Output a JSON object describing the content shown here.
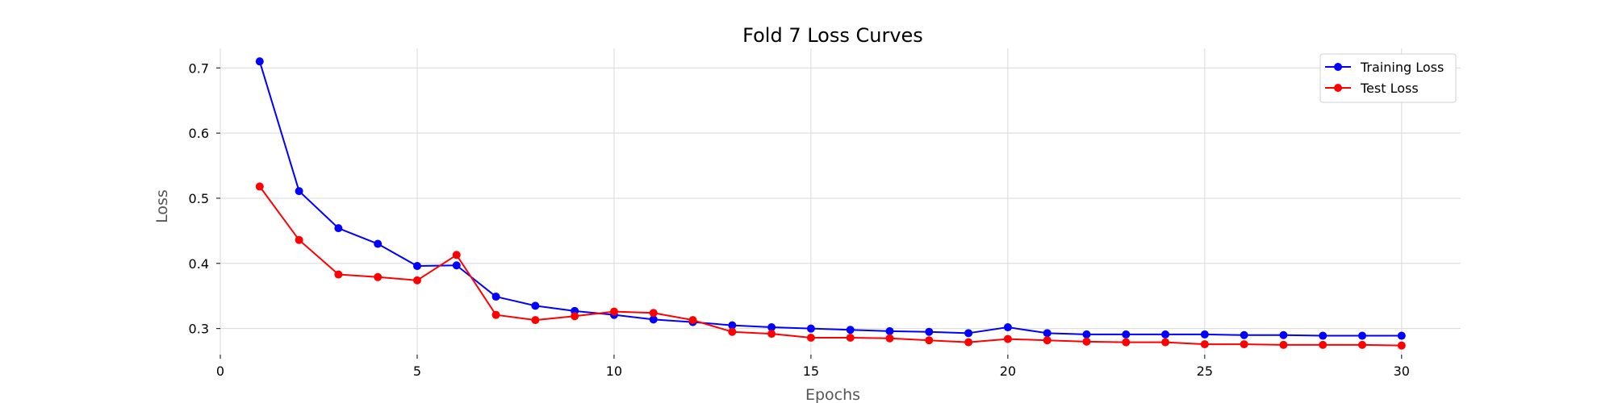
{
  "chart_data": {
    "type": "line",
    "title": "Fold 7 Loss Curves",
    "xlabel": "Epochs",
    "ylabel": "Loss",
    "xlim": [
      0,
      31.5
    ],
    "ylim": [
      0.26,
      0.73
    ],
    "xticks": [
      0,
      5,
      10,
      15,
      20,
      25,
      30
    ],
    "yticks": [
      0.3,
      0.4,
      0.5,
      0.6,
      0.7
    ],
    "grid": true,
    "legend_position": "top-right",
    "x": [
      1,
      2,
      3,
      4,
      5,
      6,
      7,
      8,
      9,
      10,
      11,
      12,
      13,
      14,
      15,
      16,
      17,
      18,
      19,
      20,
      21,
      22,
      23,
      24,
      25,
      26,
      27,
      28,
      29,
      30
    ],
    "series": [
      {
        "name": "Training Loss",
        "color": "#0000ff",
        "marker": "circle",
        "values": [
          0.71,
          0.511,
          0.454,
          0.43,
          0.396,
          0.397,
          0.349,
          0.335,
          0.327,
          0.321,
          0.314,
          0.31,
          0.305,
          0.302,
          0.3,
          0.298,
          0.296,
          0.295,
          0.293,
          0.302,
          0.293,
          0.291,
          0.291,
          0.291,
          0.291,
          0.29,
          0.29,
          0.289,
          0.289,
          0.289
        ]
      },
      {
        "name": "Test Loss",
        "color": "#ff0000",
        "marker": "circle",
        "values": [
          0.518,
          0.436,
          0.383,
          0.379,
          0.374,
          0.413,
          0.321,
          0.313,
          0.319,
          0.326,
          0.324,
          0.313,
          0.295,
          0.292,
          0.286,
          0.286,
          0.285,
          0.282,
          0.279,
          0.284,
          0.282,
          0.28,
          0.279,
          0.279,
          0.276,
          0.276,
          0.275,
          0.275,
          0.275,
          0.274
        ]
      }
    ]
  }
}
